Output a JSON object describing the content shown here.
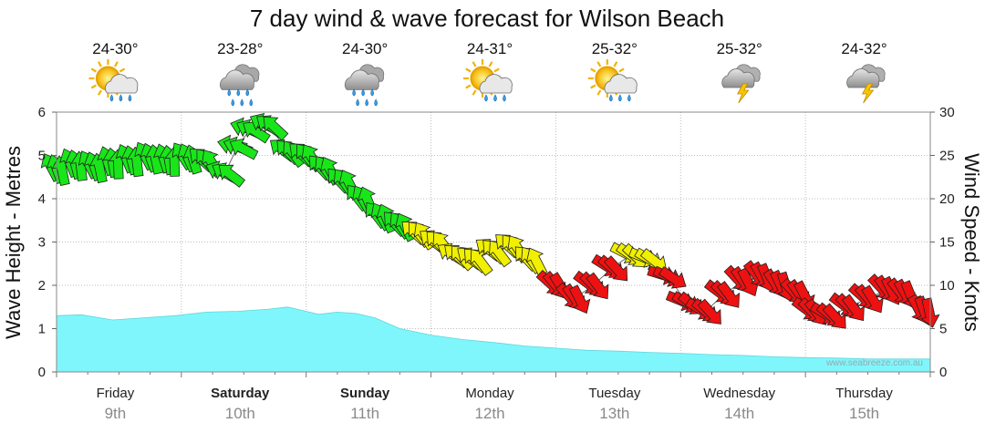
{
  "chart_data": {
    "type": "area+arrows",
    "title": "7 day wind & wave forecast for Wilson Beach",
    "left_axis": {
      "label": "Wave Height - Metres",
      "ylim": [
        0,
        6
      ],
      "ticks": [
        "0",
        "1",
        "2",
        "3",
        "4",
        "5",
        "6"
      ]
    },
    "right_axis": {
      "label": "Wind Speed - Knots",
      "ylim": [
        0,
        30
      ],
      "ticks": [
        "0",
        "5",
        "10",
        "15",
        "20",
        "25",
        "30"
      ]
    },
    "watermark": "www.seabreeze.com.au",
    "days": [
      {
        "name": "Friday",
        "date": "9th",
        "temp": "24-30°",
        "icon": "sun-cloud-rain-icon",
        "bold": false
      },
      {
        "name": "Saturday",
        "date": "10th",
        "temp": "23-28°",
        "icon": "heavy-rain-icon",
        "bold": true
      },
      {
        "name": "Sunday",
        "date": "11th",
        "temp": "24-30°",
        "icon": "heavy-rain-icon",
        "bold": true
      },
      {
        "name": "Monday",
        "date": "12th",
        "temp": "24-31°",
        "icon": "sun-cloud-rain-icon",
        "bold": false
      },
      {
        "name": "Tuesday",
        "date": "13th",
        "temp": "25-32°",
        "icon": "sun-cloud-rain-icon",
        "bold": false
      },
      {
        "name": "Wednesday",
        "date": "14th",
        "temp": "25-32°",
        "icon": "thunderstorm-icon",
        "bold": false
      },
      {
        "name": "Thursday",
        "date": "15th",
        "temp": "24-32°",
        "icon": "thunderstorm-icon",
        "bold": false
      }
    ],
    "wave_height_series": {
      "name": "Wave Height (m)",
      "color": "#7ff6fb",
      "x_days": [
        0,
        0.2,
        0.45,
        0.7,
        0.95,
        1.2,
        1.45,
        1.7,
        1.85,
        2.0,
        2.1,
        2.25,
        2.4,
        2.55,
        2.75,
        3.0,
        3.25,
        3.5,
        3.75,
        4.0,
        4.25,
        4.5,
        4.75,
        5.0,
        5.25,
        5.5,
        5.75,
        6.0,
        6.25,
        6.5,
        6.75,
        7.0
      ],
      "values": [
        1.3,
        1.32,
        1.2,
        1.25,
        1.3,
        1.38,
        1.4,
        1.45,
        1.5,
        1.4,
        1.33,
        1.38,
        1.35,
        1.25,
        1.0,
        0.85,
        0.75,
        0.68,
        0.6,
        0.55,
        0.5,
        0.48,
        0.45,
        0.43,
        0.4,
        0.38,
        0.35,
        0.33,
        0.32,
        0.3,
        0.3,
        0.3
      ]
    },
    "wind_series": {
      "name": "Wind Speed (knots)",
      "color_legend": {
        "green": "#19e619",
        "yellow": "#f0f000",
        "red": "#ee1111"
      },
      "x_days": [
        0.0,
        0.15,
        0.3,
        0.45,
        0.6,
        0.75,
        0.9,
        1.05,
        1.2,
        1.35,
        1.45,
        1.55,
        1.7,
        1.85,
        2.0,
        2.15,
        2.3,
        2.45,
        2.6,
        2.75,
        2.9,
        3.05,
        3.2,
        3.35,
        3.5,
        3.65,
        3.8,
        4.0,
        4.15,
        4.3,
        4.45,
        4.6,
        4.75,
        4.9,
        5.05,
        5.2,
        5.35,
        5.5,
        5.65,
        5.8,
        5.95,
        6.05,
        6.2,
        6.35,
        6.5,
        6.65,
        6.8,
        6.95
      ],
      "values": [
        23.5,
        24,
        23.8,
        24.2,
        24.5,
        24.8,
        24.5,
        24.8,
        24.4,
        23,
        26,
        28,
        28.5,
        25.5,
        25,
        23.5,
        22,
        20,
        18,
        17,
        16,
        15,
        13.5,
        13,
        14,
        14.5,
        13,
        10,
        8.5,
        10,
        12,
        13.5,
        13,
        11,
        8,
        7,
        9,
        10.5,
        11,
        10,
        9,
        7,
        6.5,
        7.5,
        8.5,
        9.5,
        9,
        7
      ],
      "direction_deg": [
        250,
        255,
        250,
        260,
        255,
        250,
        260,
        245,
        230,
        210,
        200,
        205,
        215,
        225,
        230,
        235,
        235,
        240,
        240,
        235,
        230,
        225,
        220,
        225,
        225,
        230,
        235,
        50,
        55,
        45,
        40,
        35,
        30,
        25,
        30,
        40,
        45,
        55,
        60,
        65,
        55,
        45,
        40,
        45,
        50,
        55,
        60,
        70
      ],
      "colors": [
        "green",
        "green",
        "green",
        "green",
        "green",
        "green",
        "green",
        "green",
        "green",
        "green",
        "green",
        "green",
        "green",
        "green",
        "green",
        "green",
        "green",
        "green",
        "green",
        "green",
        "yellow",
        "yellow",
        "yellow",
        "yellow",
        "yellow",
        "yellow",
        "yellow",
        "red",
        "red",
        "red",
        "red",
        "yellow",
        "yellow",
        "red",
        "red",
        "red",
        "red",
        "red",
        "red",
        "red",
        "red",
        "red",
        "red",
        "red",
        "red",
        "red",
        "red",
        "red"
      ]
    }
  }
}
